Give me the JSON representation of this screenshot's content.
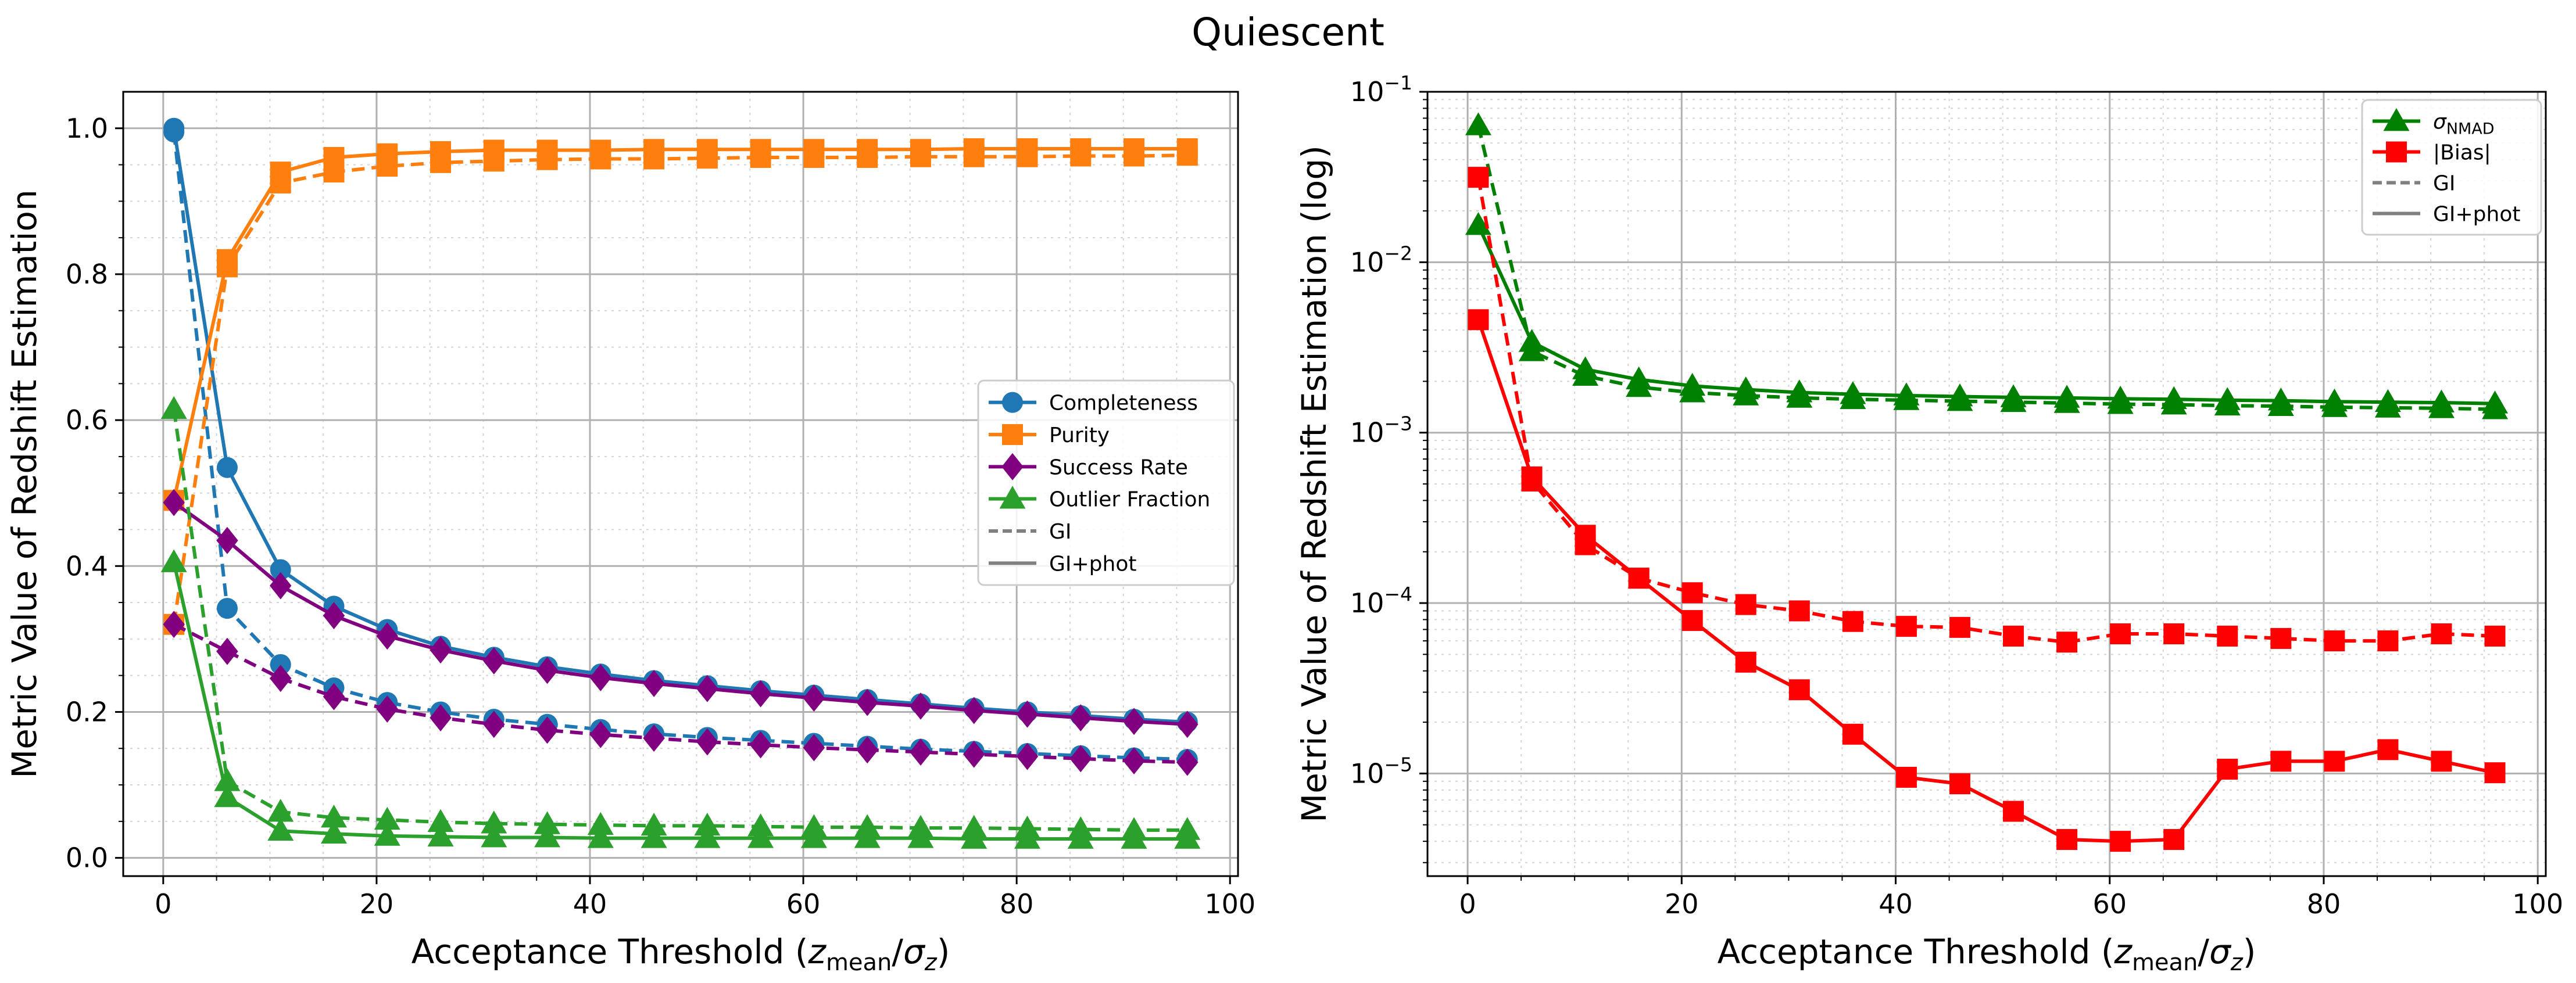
{
  "title": "Quiescent",
  "chart_data": [
    {
      "type": "line",
      "xlabel": "Acceptance Threshold (z_mean/σ_z)",
      "xlabel_main": "Acceptance Threshold (",
      "xlabel_z": "z",
      "xlabel_sub1": "mean",
      "xlabel_slash": "/",
      "xlabel_sigma": "σ",
      "xlabel_sub2": "z",
      "xlabel_close": ")",
      "ylabel": "Metric Value of Redshift Estimation",
      "xlim": [
        -3.75,
        100.75
      ],
      "ylim": [
        -0.025,
        1.05
      ],
      "xscale": "linear",
      "yscale": "linear",
      "grid": true,
      "legend_position": "center-right",
      "x": [
        1,
        6,
        11,
        16,
        21,
        26,
        31,
        36,
        41,
        46,
        51,
        56,
        61,
        66,
        71,
        76,
        81,
        86,
        91,
        96
      ],
      "x_ticks": [
        0,
        20,
        40,
        60,
        80,
        100
      ],
      "x_tick_labels": [
        "0",
        "20",
        "40",
        "60",
        "80",
        "100"
      ],
      "y_ticks": [
        0.0,
        0.2,
        0.4,
        0.6,
        0.8,
        1.0
      ],
      "y_tick_labels": [
        "0.0",
        "0.2",
        "0.4",
        "0.6",
        "0.8",
        "1.0"
      ],
      "series": [
        {
          "name": "Completeness",
          "variant": "GI+phot",
          "color": "#1f77b4",
          "marker": "circle",
          "dash": "solid",
          "values": [
            1.0,
            0.535,
            0.395,
            0.345,
            0.313,
            0.29,
            0.275,
            0.262,
            0.252,
            0.243,
            0.236,
            0.229,
            0.223,
            0.217,
            0.211,
            0.205,
            0.2,
            0.195,
            0.19,
            0.186
          ]
        },
        {
          "name": "Completeness",
          "variant": "GI",
          "color": "#1f77b4",
          "marker": "circle",
          "dash": "dashed",
          "values": [
            0.995,
            0.342,
            0.265,
            0.233,
            0.213,
            0.2,
            0.19,
            0.183,
            0.176,
            0.17,
            0.165,
            0.161,
            0.157,
            0.153,
            0.149,
            0.146,
            0.143,
            0.14,
            0.137,
            0.135
          ]
        },
        {
          "name": "Purity",
          "variant": "GI+phot",
          "color": "#ff7f0e",
          "marker": "square",
          "dash": "solid",
          "values": [
            0.49,
            0.82,
            0.94,
            0.96,
            0.965,
            0.968,
            0.97,
            0.97,
            0.97,
            0.971,
            0.971,
            0.971,
            0.971,
            0.971,
            0.971,
            0.972,
            0.972,
            0.972,
            0.972,
            0.972
          ]
        },
        {
          "name": "Purity",
          "variant": "GI",
          "color": "#ff7f0e",
          "marker": "square",
          "dash": "dashed",
          "values": [
            0.32,
            0.81,
            0.925,
            0.94,
            0.948,
            0.953,
            0.955,
            0.957,
            0.958,
            0.958,
            0.959,
            0.96,
            0.96,
            0.96,
            0.961,
            0.961,
            0.961,
            0.962,
            0.962,
            0.963
          ]
        },
        {
          "name": "Success Rate",
          "variant": "GI+phot",
          "color": "#800080",
          "marker": "diamond",
          "dash": "solid",
          "values": [
            0.487,
            0.435,
            0.373,
            0.332,
            0.304,
            0.285,
            0.27,
            0.257,
            0.247,
            0.239,
            0.232,
            0.225,
            0.219,
            0.213,
            0.208,
            0.202,
            0.197,
            0.192,
            0.187,
            0.183
          ]
        },
        {
          "name": "Success Rate",
          "variant": "GI",
          "color": "#800080",
          "marker": "diamond",
          "dash": "dashed",
          "values": [
            0.32,
            0.283,
            0.246,
            0.221,
            0.204,
            0.192,
            0.183,
            0.175,
            0.169,
            0.164,
            0.159,
            0.155,
            0.151,
            0.148,
            0.145,
            0.142,
            0.139,
            0.136,
            0.133,
            0.131
          ]
        },
        {
          "name": "Outlier Fraction",
          "variant": "GI+phot",
          "color": "#2ca02c",
          "marker": "triangle",
          "dash": "solid",
          "values": [
            0.405,
            0.083,
            0.037,
            0.033,
            0.03,
            0.029,
            0.028,
            0.028,
            0.027,
            0.027,
            0.027,
            0.027,
            0.027,
            0.027,
            0.027,
            0.026,
            0.026,
            0.026,
            0.026,
            0.026
          ]
        },
        {
          "name": "Outlier Fraction",
          "variant": "GI",
          "color": "#2ca02c",
          "marker": "triangle",
          "dash": "dashed",
          "values": [
            0.615,
            0.105,
            0.063,
            0.055,
            0.052,
            0.049,
            0.047,
            0.046,
            0.045,
            0.044,
            0.044,
            0.043,
            0.042,
            0.042,
            0.041,
            0.041,
            0.04,
            0.039,
            0.038,
            0.038
          ]
        }
      ],
      "legend": [
        {
          "label": "Completeness",
          "color": "#1f77b4",
          "marker": "circle",
          "dash": "solid"
        },
        {
          "label": "Purity",
          "color": "#ff7f0e",
          "marker": "square",
          "dash": "solid"
        },
        {
          "label": "Success Rate",
          "color": "#800080",
          "marker": "diamond",
          "dash": "solid"
        },
        {
          "label": "Outlier Fraction",
          "color": "#2ca02c",
          "marker": "triangle",
          "dash": "solid"
        },
        {
          "label": "GI",
          "color": "#808080",
          "marker": "none",
          "dash": "dashed"
        },
        {
          "label": "GI+phot",
          "color": "#808080",
          "marker": "none",
          "dash": "solid"
        }
      ]
    },
    {
      "type": "line",
      "xlabel": "Acceptance Threshold (z_mean/σ_z)",
      "xlabel_main": "Acceptance Threshold (",
      "xlabel_z": "z",
      "xlabel_sub1": "mean",
      "xlabel_slash": "/",
      "xlabel_sigma": "σ",
      "xlabel_sub2": "z",
      "xlabel_close": ")",
      "ylabel": "Metric Value of Redshift Estimation (log)",
      "xlim": [
        -3.75,
        100.75
      ],
      "ylim": [
        2.5e-06,
        0.1
      ],
      "xscale": "linear",
      "yscale": "log",
      "grid": true,
      "legend_position": "top-right",
      "x": [
        1,
        6,
        11,
        16,
        21,
        26,
        31,
        36,
        41,
        46,
        51,
        56,
        61,
        66,
        71,
        76,
        81,
        86,
        91,
        96
      ],
      "x_ticks": [
        0,
        20,
        40,
        60,
        80,
        100
      ],
      "x_tick_labels": [
        "0",
        "20",
        "40",
        "60",
        "80",
        "100"
      ],
      "y_ticks": [
        1e-05,
        0.0001,
        0.001,
        0.01,
        0.1
      ],
      "y_tick_labels": [
        {
          "base": "10",
          "exp": "−5"
        },
        {
          "base": "10",
          "exp": "−4"
        },
        {
          "base": "10",
          "exp": "−3"
        },
        {
          "base": "10",
          "exp": "−2"
        },
        {
          "base": "10",
          "exp": "−1"
        }
      ],
      "series": [
        {
          "name": "σ_NMAD",
          "variant": "GI+phot",
          "color": "#008000",
          "marker": "triangle",
          "dash": "solid",
          "values": [
            0.0165,
            0.0034,
            0.00235,
            0.00205,
            0.00188,
            0.00179,
            0.00172,
            0.00168,
            0.00165,
            0.00163,
            0.00161,
            0.0016,
            0.00158,
            0.00157,
            0.00155,
            0.00154,
            0.00152,
            0.00151,
            0.0015,
            0.00148
          ]
        },
        {
          "name": "σ_NMAD",
          "variant": "GI",
          "color": "#008000",
          "marker": "triangle",
          "dash": "dashed",
          "values": [
            0.0635,
            0.003,
            0.00215,
            0.00185,
            0.00172,
            0.00165,
            0.0016,
            0.00157,
            0.00155,
            0.00153,
            0.00151,
            0.00149,
            0.00147,
            0.00146,
            0.00144,
            0.00143,
            0.00141,
            0.0014,
            0.00139,
            0.00137
          ]
        },
        {
          "name": "|Bias|",
          "variant": "GI+phot",
          "color": "#ff0000",
          "marker": "square",
          "dash": "solid",
          "values": [
            0.0046,
            0.00055,
            0.00025,
            0.00014,
            7.9e-05,
            4.5e-05,
            3.1e-05,
            1.7e-05,
            9.5e-06,
            8.7e-06,
            6e-06,
            4.1e-06,
            4e-06,
            4.1e-06,
            1.06e-05,
            1.18e-05,
            1.18e-05,
            1.38e-05,
            1.18e-05,
            1.01e-05
          ]
        },
        {
          "name": "|Bias|",
          "variant": "GI",
          "color": "#ff0000",
          "marker": "square",
          "dash": "dashed",
          "values": [
            0.0315,
            0.00052,
            0.00022,
            0.00014,
            0.000115,
            9.8e-05,
            9e-05,
            7.8e-05,
            7.3e-05,
            7.2e-05,
            6.4e-05,
            5.9e-05,
            6.6e-05,
            6.6e-05,
            6.4e-05,
            6.2e-05,
            6e-05,
            6e-05,
            6.6e-05,
            6.4e-05
          ]
        }
      ],
      "legend": [
        {
          "label": "σ",
          "label_sub": "NMAD",
          "color": "#008000",
          "marker": "triangle",
          "dash": "solid"
        },
        {
          "label": "|Bias|",
          "label_sub": "",
          "color": "#ff0000",
          "marker": "square",
          "dash": "solid"
        },
        {
          "label": "GI",
          "label_sub": "",
          "color": "#808080",
          "marker": "none",
          "dash": "dashed"
        },
        {
          "label": "GI+phot",
          "label_sub": "",
          "color": "#808080",
          "marker": "none",
          "dash": "solid"
        }
      ]
    }
  ]
}
